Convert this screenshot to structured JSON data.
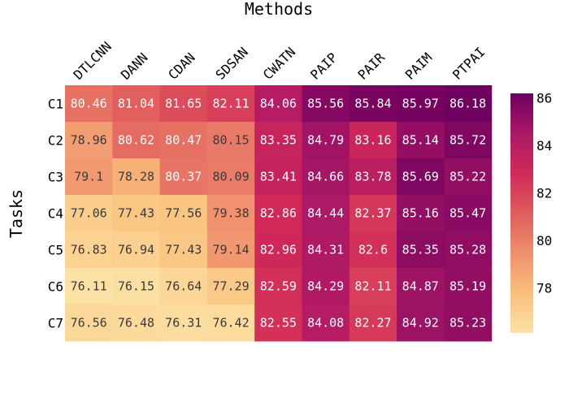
{
  "chart_data": {
    "type": "heatmap",
    "xlabel": "Methods",
    "ylabel": "Tasks",
    "x_categories": [
      "DTLCNN",
      "DANN",
      "CDAN",
      "SDSAN",
      "CWATN",
      "PAIP",
      "PAIR",
      "PAIM",
      "PTPAI"
    ],
    "y_categories": [
      "C1",
      "C2",
      "C3",
      "C4",
      "C5",
      "C6",
      "C7"
    ],
    "values": [
      [
        "80.46",
        "81.04",
        "81.65",
        "82.11",
        "84.06",
        "85.56",
        "85.84",
        "85.97",
        "86.18"
      ],
      [
        "78.96",
        "80.62",
        "80.47",
        "80.15",
        "83.35",
        "84.79",
        "83.16",
        "85.14",
        "85.72"
      ],
      [
        "79.1",
        "78.28",
        "80.37",
        "80.09",
        "83.41",
        "84.66",
        "83.78",
        "85.69",
        "85.22"
      ],
      [
        "77.06",
        "77.43",
        "77.56",
        "79.38",
        "82.86",
        "84.44",
        "82.37",
        "85.16",
        "85.47"
      ],
      [
        "76.83",
        "76.94",
        "77.43",
        "79.14",
        "82.96",
        "84.31",
        "82.6",
        "85.35",
        "85.28"
      ],
      [
        "76.11",
        "76.15",
        "76.64",
        "77.29",
        "82.59",
        "84.29",
        "82.11",
        "84.87",
        "85.19"
      ],
      [
        "76.56",
        "76.48",
        "76.31",
        "76.42",
        "82.55",
        "84.08",
        "82.27",
        "84.92",
        "85.23"
      ]
    ],
    "zrange": [
      76.11,
      86.18
    ],
    "colorbar_ticks": [
      "78",
      "80",
      "82",
      "84",
      "86"
    ],
    "colorscale_name": "magenta-sunset",
    "colorscale": [
      "#fce1a4",
      "#fabf7b",
      "#f08f6e",
      "#e05c5c",
      "#d12959",
      "#ab1866",
      "#6e005f"
    ]
  }
}
